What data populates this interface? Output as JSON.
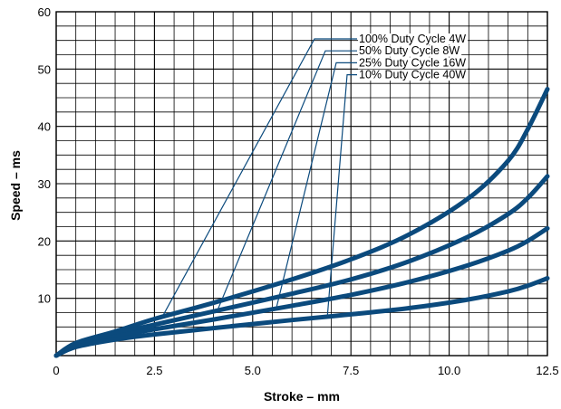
{
  "chart_data": {
    "type": "line",
    "title": "",
    "xlabel": "Stroke – mm",
    "ylabel": "Speed – ms",
    "xlim": [
      0,
      12.5
    ],
    "ylim": [
      0,
      60
    ],
    "x_ticks": [
      "0",
      "2.5",
      "5.0",
      "7.5",
      "10.0",
      "12.5"
    ],
    "y_ticks": [
      "10",
      "20",
      "30",
      "40",
      "50",
      "60"
    ],
    "grid": true,
    "legend_placement": "top-center with leader lines",
    "series_color": "#0b4a7d",
    "series": [
      {
        "name": "100% Duty Cycle 4W",
        "points": [
          [
            0,
            0
          ],
          [
            0.5,
            2.2
          ],
          [
            1.5,
            4.2
          ],
          [
            2.5,
            6.4
          ],
          [
            4,
            9.2
          ],
          [
            6,
            13.3
          ],
          [
            7.5,
            16.8
          ],
          [
            9,
            21.2
          ],
          [
            10.5,
            27.5
          ],
          [
            11.5,
            34
          ],
          [
            12,
            39.5
          ],
          [
            12.5,
            46.5
          ]
        ]
      },
      {
        "name": "50% Duty Cycle 8W",
        "points": [
          [
            0,
            0
          ],
          [
            0.5,
            2
          ],
          [
            1.5,
            3.8
          ],
          [
            2.5,
            5.4
          ],
          [
            4,
            7.7
          ],
          [
            6,
            10.8
          ],
          [
            7.5,
            13.3
          ],
          [
            9,
            16.5
          ],
          [
            10.5,
            20.8
          ],
          [
            11.5,
            24.7
          ],
          [
            12,
            27.5
          ],
          [
            12.5,
            31.3
          ]
        ]
      },
      {
        "name": "25% Duty Cycle 16W",
        "points": [
          [
            0,
            0
          ],
          [
            0.5,
            1.8
          ],
          [
            1.5,
            3.3
          ],
          [
            2.5,
            4.6
          ],
          [
            4,
            6.3
          ],
          [
            6,
            8.7
          ],
          [
            7.5,
            10.6
          ],
          [
            9,
            12.9
          ],
          [
            10.5,
            15.8
          ],
          [
            11.5,
            18.3
          ],
          [
            12,
            20
          ],
          [
            12.5,
            22.2
          ]
        ]
      },
      {
        "name": "10% Duty Cycle 40W",
        "points": [
          [
            0,
            0
          ],
          [
            0.5,
            1.5
          ],
          [
            1.5,
            2.8
          ],
          [
            2.5,
            3.7
          ],
          [
            4,
            4.8
          ],
          [
            6,
            6.2
          ],
          [
            7.5,
            7.2
          ],
          [
            9,
            8.3
          ],
          [
            10.5,
            9.8
          ],
          [
            11.5,
            11.2
          ],
          [
            12,
            12.2
          ],
          [
            12.5,
            13.5
          ]
        ]
      }
    ],
    "leader_anchors": [
      {
        "series": 0,
        "x": 2.7
      },
      {
        "series": 1,
        "x": 4.1
      },
      {
        "series": 2,
        "x": 5.6
      },
      {
        "series": 3,
        "x": 6.9
      }
    ]
  }
}
